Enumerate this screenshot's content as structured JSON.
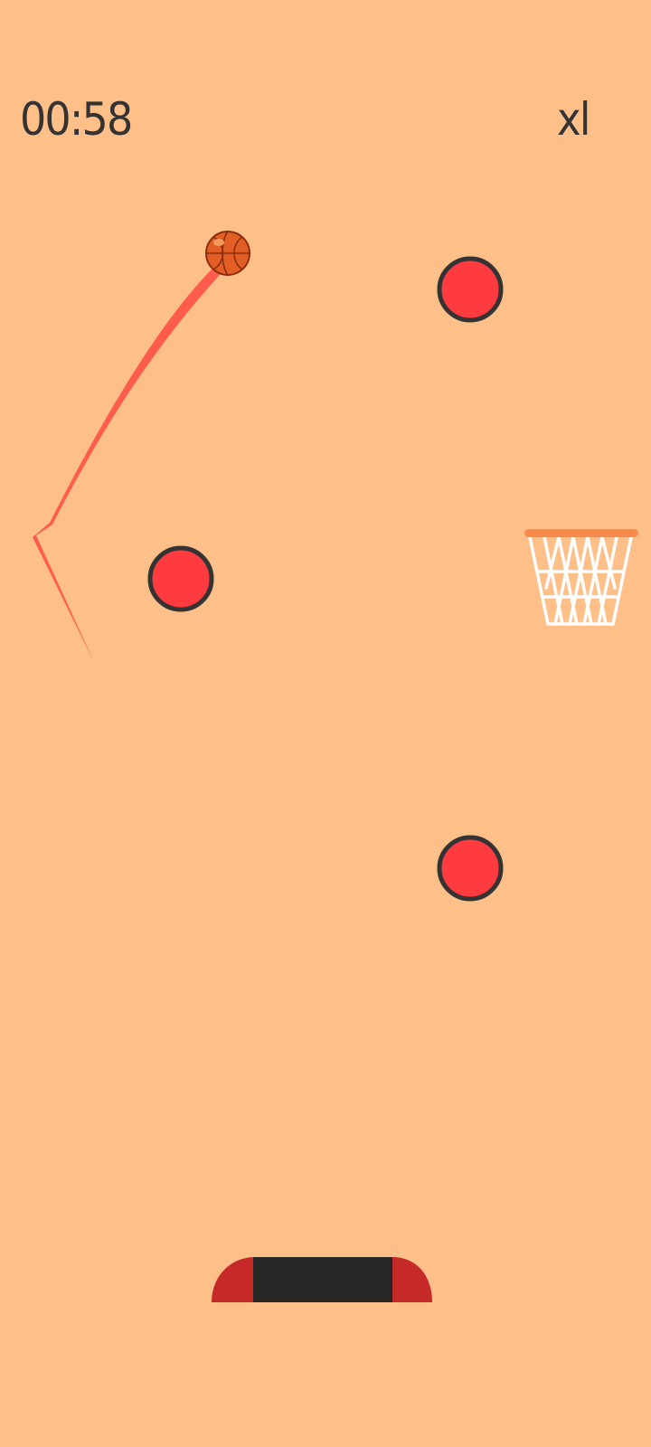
{
  "hud": {
    "timer": "00:58",
    "multiplier": "xl"
  },
  "icons": {
    "ball": "basketball-icon",
    "hoop": "basketball-hoop-icon"
  },
  "colors": {
    "background": "#FFBF88",
    "text": "#333333",
    "obstacle_fill": "#FF3B3F",
    "obstacle_stroke": "#333333",
    "trail": "#FF5C4D",
    "ball": "#E25E24",
    "ball_seams": "#8A2F10",
    "hoop_rim": "#F58A4B",
    "hoop_net": "#FFFFFF",
    "paddle_center": "#262626",
    "paddle_ends": "#C62A28"
  }
}
